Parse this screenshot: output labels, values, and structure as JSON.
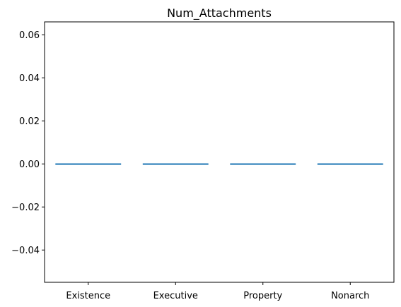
{
  "chart_data": {
    "type": "box",
    "title": "Num_Attachments",
    "xlabel": "",
    "ylabel": "",
    "categories": [
      "Existence",
      "Executive",
      "Property",
      "Nonarch"
    ],
    "ylim": [
      -0.055,
      0.066
    ],
    "yticks": [
      -0.04,
      -0.02,
      0.0,
      0.02,
      0.04,
      0.06
    ],
    "ytick_labels": [
      "−0.04",
      "−0.02",
      "0.00",
      "0.02",
      "0.04",
      "0.06"
    ],
    "boxes": [
      {
        "category": "Existence",
        "min": 0,
        "q1": 0,
        "median": 0,
        "q3": 0,
        "max": 0
      },
      {
        "category": "Executive",
        "min": 0,
        "q1": 0,
        "median": 0,
        "q3": 0,
        "max": 0
      },
      {
        "category": "Property",
        "min": 0,
        "q1": 0,
        "median": 0,
        "q3": 0,
        "max": 0
      },
      {
        "category": "Nonarch",
        "min": 0,
        "q1": 0,
        "median": 0,
        "q3": 0,
        "max": 0
      }
    ],
    "grid": false,
    "legend": "none",
    "colors": {
      "box": "#1f77b4",
      "median": "#ff7f0e",
      "axes": "#000000"
    }
  }
}
